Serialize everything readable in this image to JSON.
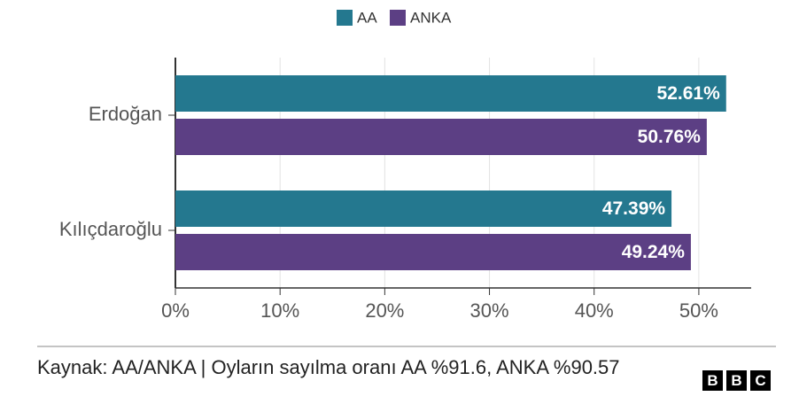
{
  "chart_data": {
    "type": "hbar",
    "categories": [
      "Erdoğan",
      "Kılıçdaroğlu"
    ],
    "series": [
      {
        "name": "AA",
        "color": "#24788f",
        "values": [
          52.61,
          47.39
        ],
        "value_labels": [
          "52.61%",
          "47.39%"
        ]
      },
      {
        "name": "ANKA",
        "color": "#5c3f84",
        "values": [
          50.76,
          49.24
        ],
        "value_labels": [
          "50.76%",
          "49.24%"
        ]
      }
    ],
    "xlim": [
      0,
      55
    ],
    "xticks": [
      {
        "value": 0,
        "label": "0%"
      },
      {
        "value": 10,
        "label": "10%"
      },
      {
        "value": 20,
        "label": "20%"
      },
      {
        "value": 30,
        "label": "30%"
      },
      {
        "value": 40,
        "label": "40%"
      },
      {
        "value": 50,
        "label": "50%"
      }
    ],
    "grid": true,
    "legend": "top",
    "source": "Kaynak: AA/ANKA | Oyların sayılma oranı AA %91.6, ANKA %90.57",
    "logo": [
      "B",
      "B",
      "C"
    ]
  }
}
